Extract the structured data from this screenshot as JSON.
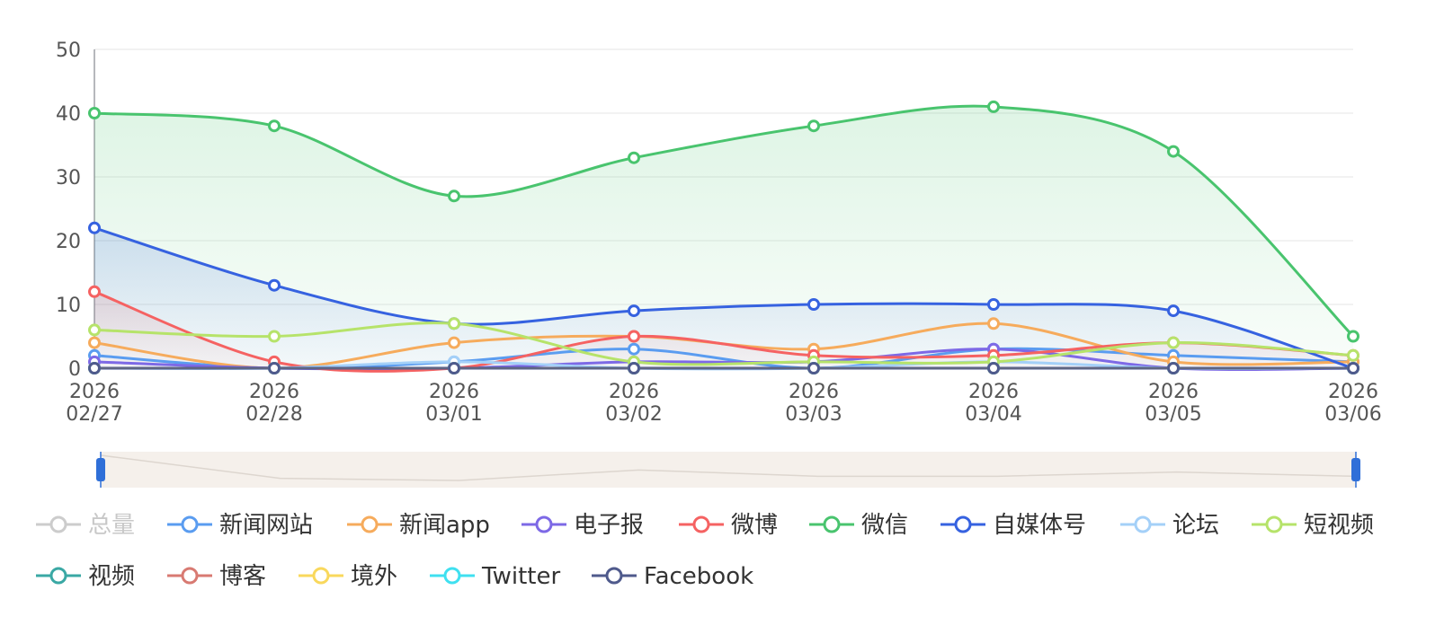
{
  "chart_data": {
    "type": "line",
    "smooth": true,
    "x_label_lines": [
      [
        "2026",
        "02/27"
      ],
      [
        "2026",
        "02/28"
      ],
      [
        "2026",
        "03/01"
      ],
      [
        "2026",
        "03/02"
      ],
      [
        "2026",
        "03/03"
      ],
      [
        "2026",
        "03/04"
      ],
      [
        "2026",
        "03/05"
      ],
      [
        "2026",
        "03/06"
      ]
    ],
    "ylim": [
      0,
      50
    ],
    "y_ticks": [
      "0",
      "10",
      "20",
      "30",
      "40",
      "50"
    ],
    "grid": true,
    "legend_position": "bottom",
    "data_zoom": {
      "range_percent": [
        0,
        100
      ]
    },
    "series": [
      {
        "name": "总量",
        "color": "#cccccc",
        "active": false,
        "area": false,
        "values": []
      },
      {
        "name": "新闻网站",
        "color": "#5a9cf0",
        "active": true,
        "area": false,
        "values": [
          2,
          0,
          1,
          3,
          0,
          3,
          2,
          1
        ]
      },
      {
        "name": "新闻app",
        "color": "#f6ab5c",
        "active": true,
        "area": false,
        "values": [
          4,
          0,
          4,
          5,
          3,
          7,
          1,
          1
        ]
      },
      {
        "name": "电子报",
        "color": "#7d69e6",
        "active": true,
        "area": false,
        "values": [
          1,
          0,
          0,
          1,
          1,
          3,
          0,
          0
        ]
      },
      {
        "name": "微博",
        "color": "#f56262",
        "active": true,
        "area": true,
        "values": [
          12,
          1,
          0,
          5,
          2,
          2,
          4,
          2
        ]
      },
      {
        "name": "微信",
        "color": "#49c46e",
        "active": true,
        "area": true,
        "values": [
          40,
          38,
          27,
          33,
          38,
          41,
          34,
          5
        ]
      },
      {
        "name": "自媒体号",
        "color": "#3662e0",
        "active": true,
        "area": true,
        "values": [
          22,
          13,
          7,
          9,
          10,
          10,
          9,
          0
        ]
      },
      {
        "name": "论坛",
        "color": "#a4d0f8",
        "active": true,
        "area": false,
        "values": [
          0,
          0,
          1,
          0,
          0,
          1,
          0,
          0
        ]
      },
      {
        "name": "短视频",
        "color": "#b6e36a",
        "active": true,
        "area": false,
        "values": [
          6,
          5,
          7,
          1,
          1,
          1,
          4,
          2
        ]
      },
      {
        "name": "视频",
        "color": "#3aa8a4",
        "active": true,
        "area": false,
        "values": [
          0,
          0,
          0,
          0,
          0,
          0,
          0,
          0
        ]
      },
      {
        "name": "博客",
        "color": "#d87a72",
        "active": true,
        "area": false,
        "values": [
          0,
          0,
          0,
          0,
          0,
          0,
          0,
          0
        ]
      },
      {
        "name": "境外",
        "color": "#f9d85c",
        "active": true,
        "area": false,
        "values": [
          0,
          0,
          0,
          0,
          0,
          0,
          0,
          0
        ]
      },
      {
        "name": "Twitter",
        "color": "#3fe0f0",
        "active": true,
        "area": false,
        "values": [
          0,
          0,
          0,
          0,
          0,
          0,
          0,
          0
        ]
      },
      {
        "name": "Facebook",
        "color": "#4f5a8c",
        "active": true,
        "area": false,
        "values": [
          0,
          0,
          0,
          0,
          0,
          0,
          0,
          0
        ]
      }
    ]
  }
}
